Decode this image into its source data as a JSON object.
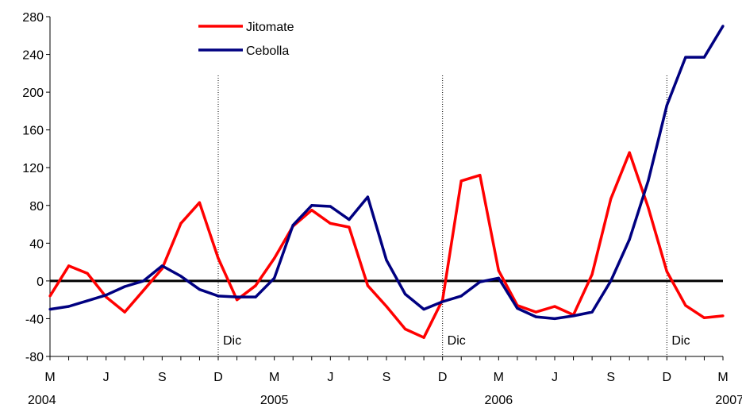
{
  "chart_data": {
    "type": "line",
    "title": "",
    "xlabel": "",
    "ylabel": "",
    "ylim": [
      -80,
      280
    ],
    "yticks": [
      -80,
      -40,
      0,
      40,
      80,
      120,
      160,
      200,
      240,
      280
    ],
    "month_ticks": [
      {
        "label": "M",
        "index": 0
      },
      {
        "label": "J",
        "index": 3
      },
      {
        "label": "S",
        "index": 6
      },
      {
        "label": "D",
        "index": 9
      },
      {
        "label": "M",
        "index": 12
      },
      {
        "label": "J",
        "index": 15
      },
      {
        "label": "S",
        "index": 18
      },
      {
        "label": "D",
        "index": 21
      },
      {
        "label": "M",
        "index": 24
      },
      {
        "label": "J",
        "index": 27
      },
      {
        "label": "S",
        "index": 30
      },
      {
        "label": "D",
        "index": 33
      },
      {
        "label": "M",
        "index": 36
      }
    ],
    "year_labels": [
      {
        "label": "2004",
        "index": 0
      },
      {
        "label": "2005",
        "index": 12
      },
      {
        "label": "2006",
        "index": 24
      },
      {
        "label": "2007",
        "index": 36
      }
    ],
    "annotations": [
      {
        "label": "Dic",
        "index": 9
      },
      {
        "label": "Dic",
        "index": 21
      },
      {
        "label": "Dic",
        "index": 33
      }
    ],
    "legend_position": "top-center",
    "series": [
      {
        "name": "Jitomate",
        "color": "#ff0000",
        "values": [
          -16,
          16,
          8,
          -17,
          -33,
          -10,
          13,
          61,
          83,
          24,
          -20,
          -5,
          24,
          58,
          75,
          61,
          57,
          -5,
          -27,
          -51,
          -60,
          -20,
          106,
          112,
          11,
          -26,
          -33,
          -27,
          -36,
          7,
          87,
          136,
          78,
          10,
          -26,
          -39,
          -37
        ]
      },
      {
        "name": "Cebolla",
        "color": "#000080",
        "values": [
          -30,
          -27,
          -21,
          -15,
          -6,
          0,
          16,
          5,
          -9,
          -16,
          -17,
          -17,
          3,
          59,
          80,
          79,
          65,
          89,
          22,
          -14,
          -30,
          -22,
          -16,
          -1,
          3,
          -29,
          -38,
          -40,
          -37,
          -33,
          0,
          44,
          106,
          186,
          237,
          237,
          270
        ]
      }
    ]
  }
}
